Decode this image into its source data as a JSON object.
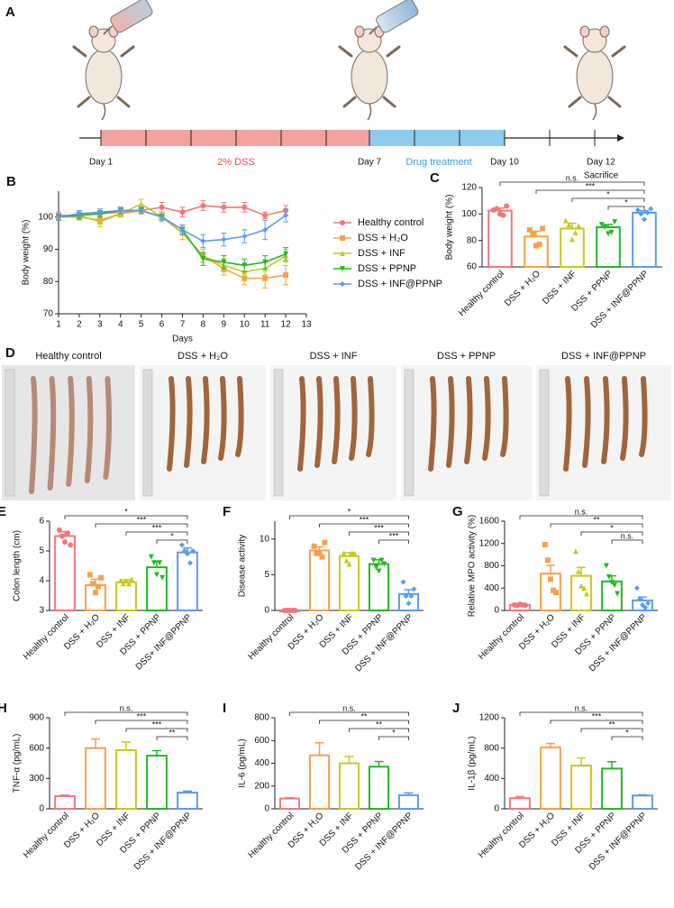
{
  "timeline": {
    "label": "A",
    "day1": "Day 1",
    "dss": "2% DSS",
    "day7": "Day 7",
    "drug": "Drug treatment",
    "day10": "Day 10",
    "day12": "Day 12",
    "sacrifice": "Sacrifice"
  },
  "photos": {
    "label": "D",
    "groups": [
      "Healthy control",
      "DSS + H₂O",
      "DSS + INF",
      "DSS + PPNP",
      "DSS + INF@PPNP"
    ]
  },
  "chart_data": [
    {
      "type": "line",
      "panel": "B",
      "ylabel": "Body weight (%)",
      "xlabel": "Days",
      "x": [
        1,
        2,
        3,
        4,
        5,
        6,
        7,
        8,
        9,
        10,
        11,
        12
      ],
      "xlim": [
        1,
        13
      ],
      "xticks": [
        1,
        2,
        3,
        4,
        5,
        6,
        7,
        8,
        9,
        10,
        11,
        12,
        13
      ],
      "ylim": [
        70,
        108
      ],
      "yticks": [
        70,
        80,
        90,
        100
      ],
      "legend": "right",
      "series": [
        {
          "name": "Healthy control",
          "color": "#f07878",
          "values": [
            100.5,
            100.5,
            101,
            101.5,
            102,
            103,
            101.5,
            103.5,
            103,
            103,
            100.5,
            102
          ],
          "errors": [
            1,
            1,
            1,
            1,
            1,
            1.5,
            1.5,
            1.5,
            1.5,
            1.5,
            1,
            1.5
          ]
        },
        {
          "name": "DSS + H₂O",
          "color": "#f5a14a",
          "values": [
            100,
            100,
            99,
            101,
            102,
            100,
            95,
            88,
            84,
            81,
            81,
            82
          ],
          "errors": [
            1,
            1,
            1,
            1,
            1,
            1.5,
            2,
            2,
            2,
            2,
            3,
            3
          ]
        },
        {
          "name": "DSS + INF",
          "color": "#c8c81e",
          "values": [
            100,
            100.5,
            98.5,
            101,
            104,
            100,
            95,
            88,
            85,
            83,
            84,
            88
          ],
          "errors": [
            1,
            1,
            1.5,
            1,
            1.5,
            1.5,
            2,
            2,
            2,
            2,
            2,
            2
          ]
        },
        {
          "name": "DSS + PPNP",
          "color": "#22b822",
          "values": [
            100,
            100.5,
            101,
            102,
            102,
            100,
            96,
            87,
            86,
            85,
            86,
            88.5
          ],
          "errors": [
            1,
            1,
            1,
            1,
            1,
            1,
            1.5,
            2,
            2,
            2,
            2,
            2
          ]
        },
        {
          "name": "DSS + INF@PPNP",
          "color": "#5b9bf0",
          "values": [
            100,
            101,
            101.5,
            102,
            102,
            100,
            96,
            92.5,
            93,
            94,
            96,
            100.5
          ],
          "errors": [
            1,
            1,
            1,
            1,
            1,
            1,
            1.5,
            2,
            2,
            2,
            3,
            2
          ]
        }
      ]
    },
    {
      "type": "bar",
      "panel": "C",
      "ylabel": "Body weight (%)",
      "categories": [
        "Healthy control",
        "DSS + H₂O",
        "DSS + INF",
        "DSS + PPNP",
        "DSS + INF@PPNP"
      ],
      "colors": [
        "#f07878",
        "#f5a14a",
        "#c8c81e",
        "#22b822",
        "#5b9bf0"
      ],
      "ylim": [
        60,
        120
      ],
      "yticks": [
        60,
        80,
        100,
        120
      ],
      "values": [
        102.5,
        83,
        89,
        90,
        101
      ],
      "errors": [
        2,
        4,
        4,
        2,
        1.5
      ],
      "points": [
        [
          103,
          104,
          100,
          99,
          106
        ],
        [
          88,
          85,
          76,
          77,
          89
        ],
        [
          95,
          92,
          81,
          86,
          91
        ],
        [
          92,
          90,
          85,
          86,
          94
        ],
        [
          103,
          100,
          96,
          101,
          104
        ]
      ],
      "annotations": [
        {
          "from": 0,
          "label": "n.s."
        },
        {
          "from": 1,
          "label": "***"
        },
        {
          "from": 2,
          "label": "*"
        },
        {
          "from": 3,
          "label": "*"
        }
      ]
    },
    {
      "type": "bar",
      "panel": "E",
      "ylabel": "Colon length (cm)",
      "categories": [
        "Healthy control",
        "DSS + H₂O",
        "DSS + INF",
        "DSS + PPNP",
        "DSS+ INF@PPNP"
      ],
      "colors": [
        "#f07878",
        "#f5a14a",
        "#c8c81e",
        "#22b822",
        "#5b9bf0"
      ],
      "ylim": [
        3,
        6
      ],
      "yticks": [
        3,
        4,
        5,
        6
      ],
      "values": [
        5.5,
        3.85,
        3.95,
        4.45,
        4.95
      ],
      "errors": [
        0.15,
        0.2,
        0.08,
        0.2,
        0.15
      ],
      "points": [
        [
          5.7,
          5.5,
          5.3,
          5.6,
          5.2
        ],
        [
          4.2,
          3.9,
          3.6,
          3.8,
          4.1
        ],
        [
          4,
          3.9,
          4,
          3.9,
          4.05
        ],
        [
          4.8,
          4.6,
          4.2,
          4.6,
          4.1
        ],
        [
          5.2,
          5,
          4.9,
          4.6,
          5
        ]
      ],
      "annotations": [
        {
          "from": 0,
          "label": "*"
        },
        {
          "from": 1,
          "label": "***"
        },
        {
          "from": 2,
          "label": "***"
        },
        {
          "from": 3,
          "label": "*"
        }
      ]
    },
    {
      "type": "bar",
      "panel": "F",
      "ylabel": "Disease activity",
      "categories": [
        "Healthy control",
        "DSS + H₂O",
        "DSS + INF",
        "DSS + PPNP",
        "DSS + INF@PPNP"
      ],
      "colors": [
        "#f07878",
        "#f5a14a",
        "#c8c81e",
        "#22b822",
        "#5b9bf0"
      ],
      "ylim": [
        0,
        12.5
      ],
      "yticks": [
        0,
        5,
        10
      ],
      "values": [
        0,
        8.4,
        7.6,
        6.5,
        2.3
      ],
      "errors": [
        0,
        0.5,
        0.5,
        0.6,
        0.6
      ],
      "points": [
        [
          0,
          0,
          0,
          0,
          0
        ],
        [
          9,
          8,
          8,
          7.5,
          9.5
        ],
        [
          8,
          7,
          6.5,
          8,
          8
        ],
        [
          7,
          6,
          5.5,
          7,
          6.5
        ],
        [
          4,
          2,
          1,
          2,
          3
        ]
      ],
      "annotations": [
        {
          "from": 0,
          "label": "*"
        },
        {
          "from": 1,
          "label": "***"
        },
        {
          "from": 2,
          "label": "***"
        },
        {
          "from": 3,
          "label": "***"
        }
      ]
    },
    {
      "type": "bar",
      "panel": "G",
      "ylabel": "Relative MPO activity (%)",
      "categories": [
        "Healthy control",
        "DSS + H₂O",
        "DSS + INF",
        "DSS + PPNP",
        "DSS + INF@PPNP"
      ],
      "colors": [
        "#f07878",
        "#f5a14a",
        "#c8c81e",
        "#22b822",
        "#5b9bf0"
      ],
      "ylim": [
        0,
        1600
      ],
      "yticks": [
        0,
        400,
        800,
        1200,
        1600
      ],
      "values": [
        100,
        660,
        620,
        520,
        180
      ],
      "errors": [
        20,
        150,
        150,
        100,
        60
      ],
      "points": [
        [
          100,
          90,
          110,
          100,
          95
        ],
        [
          1180,
          900,
          560,
          360,
          320
        ],
        [
          1060,
          700,
          440,
          400,
          300
        ],
        [
          800,
          600,
          500,
          450,
          300
        ],
        [
          400,
          200,
          100,
          50,
          130
        ]
      ],
      "annotations": [
        {
          "from": 0,
          "label": "n.s."
        },
        {
          "from": 1,
          "label": "**"
        },
        {
          "from": 2,
          "label": "*"
        },
        {
          "from": 3,
          "label": "n.s."
        }
      ]
    },
    {
      "type": "bar",
      "panel": "H",
      "ylabel": "TNF-α (pg/mL)",
      "categories": [
        "Healthy control",
        "DSS + H₂O",
        "DSS + INF",
        "DSS + PPNP",
        "DSS + INF@PPNP"
      ],
      "colors": [
        "#f07878",
        "#f5a14a",
        "#c8c81e",
        "#22b822",
        "#5b9bf0"
      ],
      "ylim": [
        0,
        900
      ],
      "yticks": [
        0,
        300,
        600,
        900
      ],
      "values": [
        125,
        600,
        580,
        525,
        160
      ],
      "errors": [
        10,
        90,
        80,
        50,
        15
      ],
      "annotations": [
        {
          "from": 0,
          "label": "n.s."
        },
        {
          "from": 1,
          "label": "***"
        },
        {
          "from": 2,
          "label": "***"
        },
        {
          "from": 3,
          "label": "**"
        }
      ]
    },
    {
      "type": "bar",
      "panel": "I",
      "ylabel": "IL-6 (pg/mL)",
      "categories": [
        "Healthy control",
        "DSS + H₂O",
        "DSS + INF",
        "DSS + PPNP",
        "DSS + INF@PPNP"
      ],
      "colors": [
        "#f07878",
        "#f5a14a",
        "#c8c81e",
        "#22b822",
        "#5b9bf0"
      ],
      "ylim": [
        0,
        800
      ],
      "yticks": [
        0,
        200,
        400,
        600,
        800
      ],
      "values": [
        90,
        470,
        400,
        370,
        120
      ],
      "errors": [
        8,
        110,
        60,
        45,
        20
      ],
      "annotations": [
        {
          "from": 0,
          "label": "n.s."
        },
        {
          "from": 1,
          "label": "**"
        },
        {
          "from": 2,
          "label": "**"
        },
        {
          "from": 3,
          "label": "*"
        }
      ]
    },
    {
      "type": "bar",
      "panel": "J",
      "ylabel": "IL-1β (pg/mL)",
      "categories": [
        "Healthy control",
        "DSS + H₂O",
        "DSS + INF",
        "DSS + PPNP",
        "DSS + INF@PPNP"
      ],
      "colors": [
        "#f07878",
        "#f5a14a",
        "#c8c81e",
        "#22b822",
        "#5b9bf0"
      ],
      "ylim": [
        0,
        1200
      ],
      "yticks": [
        0,
        400,
        800,
        1200
      ],
      "values": [
        140,
        810,
        570,
        530,
        175
      ],
      "errors": [
        20,
        50,
        100,
        90,
        10
      ],
      "annotations": [
        {
          "from": 0,
          "label": "n.s."
        },
        {
          "from": 1,
          "label": "***"
        },
        {
          "from": 2,
          "label": "**"
        },
        {
          "from": 3,
          "label": "*"
        }
      ]
    }
  ]
}
